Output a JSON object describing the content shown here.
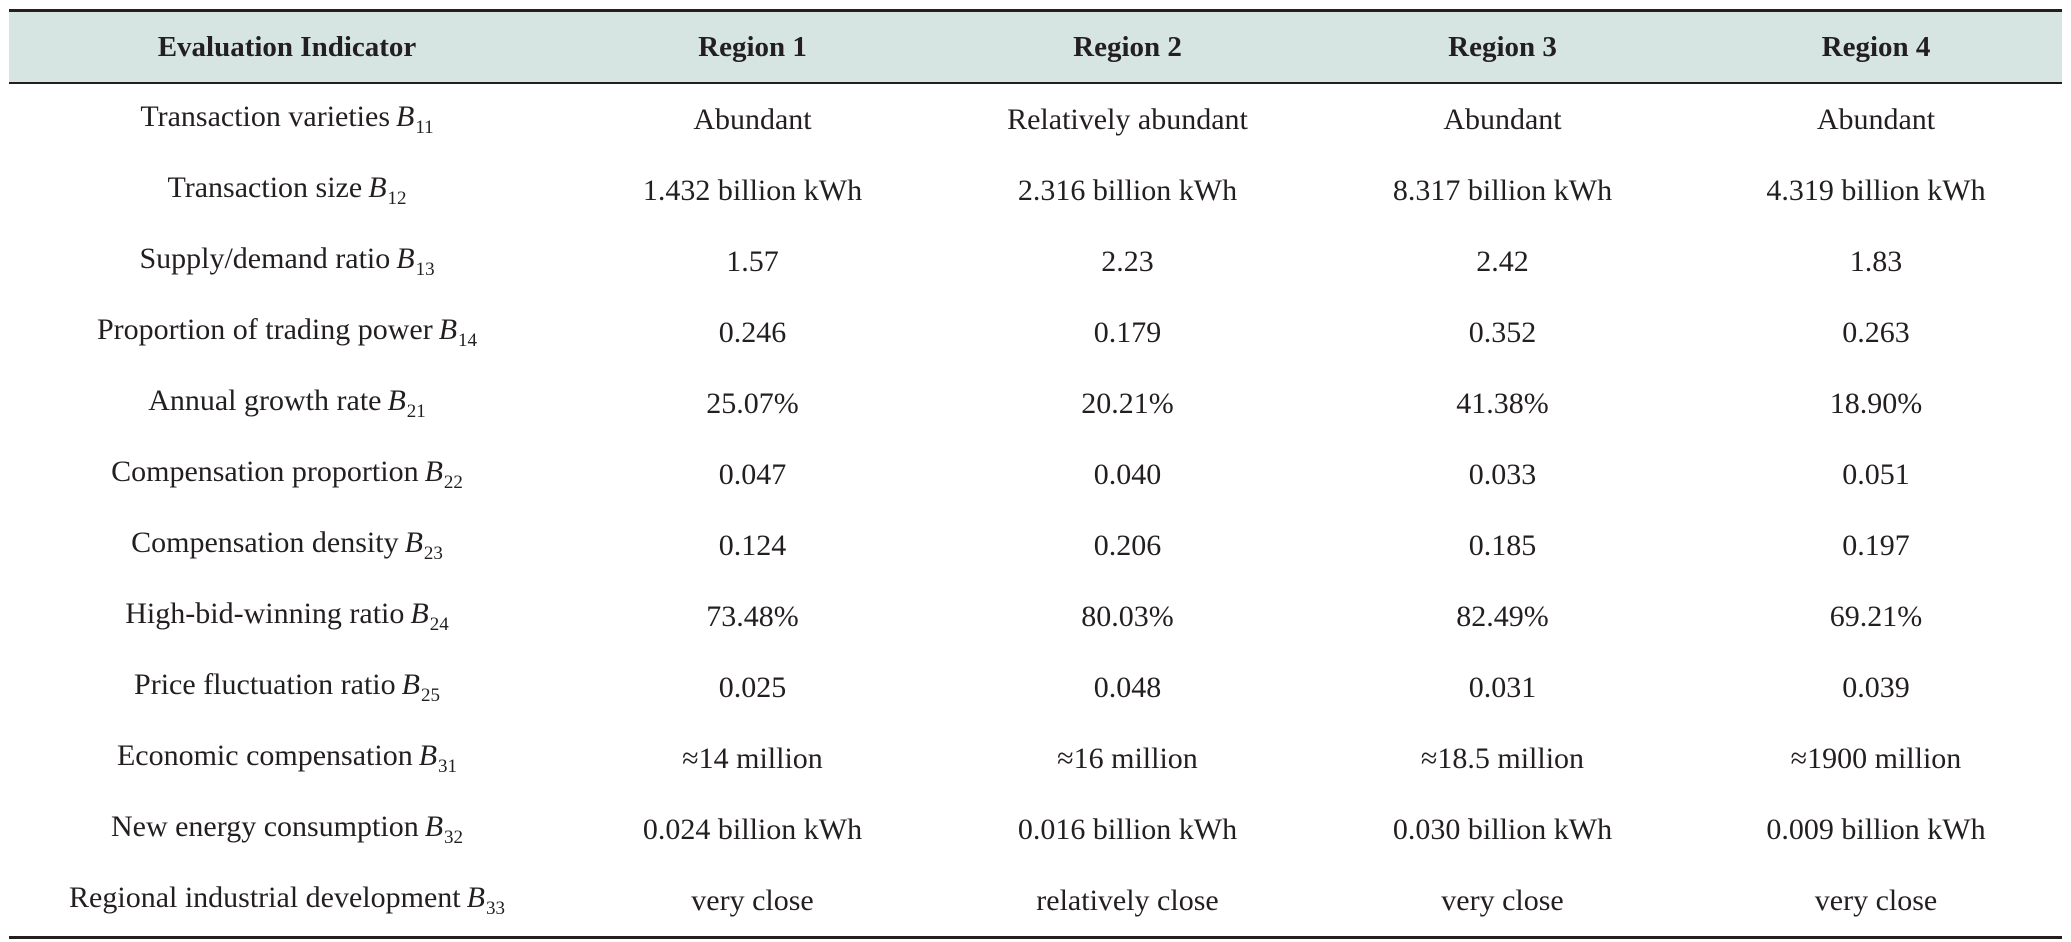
{
  "table": {
    "headers": [
      "Evaluation Indicator",
      "Region 1",
      "Region 2",
      "Region 3",
      "Region 4"
    ],
    "rows": [
      {
        "label": "Transaction varieties",
        "symbol": "B",
        "sub": "11",
        "values": [
          "Abundant",
          "Relatively abundant",
          "Abundant",
          "Abundant"
        ]
      },
      {
        "label": "Transaction size",
        "symbol": "B",
        "sub": "12",
        "values": [
          "1.432 billion kWh",
          "2.316 billion kWh",
          "8.317 billion kWh",
          "4.319 billion kWh"
        ]
      },
      {
        "label": "Supply/demand ratio",
        "symbol": "B",
        "sub": "13",
        "values": [
          "1.57",
          "2.23",
          "2.42",
          "1.83"
        ]
      },
      {
        "label": "Proportion of trading power",
        "symbol": "B",
        "sub": "14",
        "values": [
          "0.246",
          "0.179",
          "0.352",
          "0.263"
        ]
      },
      {
        "label": "Annual growth rate",
        "symbol": "B",
        "sub": "21",
        "values": [
          "25.07%",
          "20.21%",
          "41.38%",
          "18.90%"
        ]
      },
      {
        "label": "Compensation proportion",
        "symbol": "B",
        "sub": "22",
        "values": [
          "0.047",
          "0.040",
          "0.033",
          "0.051"
        ]
      },
      {
        "label": "Compensation density",
        "symbol": "B",
        "sub": "23",
        "values": [
          "0.124",
          "0.206",
          "0.185",
          "0.197"
        ]
      },
      {
        "label": "High-bid-winning ratio",
        "symbol": "B",
        "sub": "24",
        "values": [
          "73.48%",
          "80.03%",
          "82.49%",
          "69.21%"
        ]
      },
      {
        "label": "Price fluctuation ratio",
        "symbol": "B",
        "sub": "25",
        "values": [
          "0.025",
          "0.048",
          "0.031",
          "0.039"
        ]
      },
      {
        "label": "Economic compensation",
        "symbol": "B",
        "sub": "31",
        "values": [
          "≈14 million",
          "≈16 million",
          "≈18.5 million",
          "≈1900 million"
        ]
      },
      {
        "label": "New energy consumption",
        "symbol": "B",
        "sub": "32",
        "values": [
          "0.024 billion kWh",
          "0.016 billion kWh",
          "0.030 billion kWh",
          "0.009 billion kWh"
        ]
      },
      {
        "label": "Regional industrial development",
        "symbol": "B",
        "sub": "33",
        "values": [
          "very close",
          "relatively close",
          "very close",
          "very close"
        ]
      }
    ]
  },
  "colors": {
    "header_bg": "#d6e5e1",
    "text": "#231f20",
    "rule": "#231f20"
  }
}
